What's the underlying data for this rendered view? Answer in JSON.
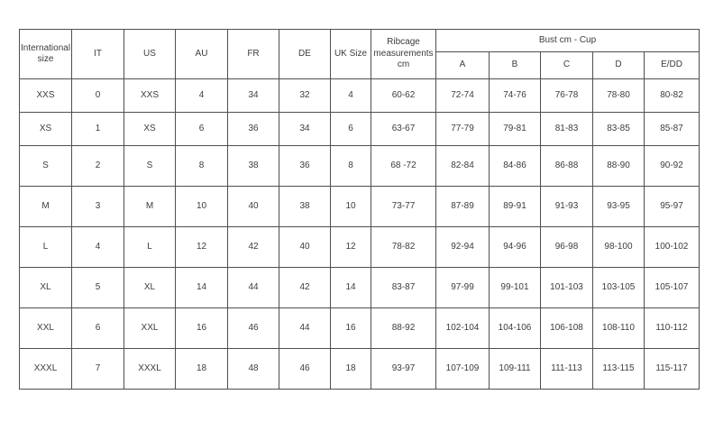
{
  "colors": {
    "background": "#ffffff",
    "border": "#4f4f4f",
    "text": "#3c3c3c"
  },
  "chart_data": {
    "type": "table",
    "title": "",
    "header": {
      "main_columns": [
        "International size",
        "IT",
        "US",
        "AU",
        "FR",
        "DE",
        "UK Size",
        "Ribcage measurements cm"
      ],
      "group": {
        "label": "Bust cm - Cup",
        "sub_columns": [
          "A",
          "B",
          "C",
          "D",
          "E/DD"
        ]
      }
    },
    "rows": [
      [
        "XXS",
        "0",
        "XXS",
        "4",
        "34",
        "32",
        "4",
        "60-62",
        "72-74",
        "74-76",
        "76-78",
        "78-80",
        "80-82"
      ],
      [
        "XS",
        "1",
        "XS",
        "6",
        "36",
        "34",
        "6",
        "63-67",
        "77-79",
        "79-81",
        "81-83",
        "83-85",
        "85-87"
      ],
      [
        "S",
        "2",
        "S",
        "8",
        "38",
        "36",
        "8",
        "68 -72",
        "82-84",
        "84-86",
        "86-88",
        "88-90",
        "90-92"
      ],
      [
        "M",
        "3",
        "M",
        "10",
        "40",
        "38",
        "10",
        "73-77",
        "87-89",
        "89-91",
        "91-93",
        "93-95",
        "95-97"
      ],
      [
        "L",
        "4",
        "L",
        "12",
        "42",
        "40",
        "12",
        "78-82",
        "92-94",
        "94-96",
        "96-98",
        "98-100",
        "100-102"
      ],
      [
        "XL",
        "5",
        "XL",
        "14",
        "44",
        "42",
        "14",
        "83-87",
        "97-99",
        "99-101",
        "101-103",
        "103-105",
        "105-107"
      ],
      [
        "XXL",
        "6",
        "XXL",
        "16",
        "46",
        "44",
        "16",
        "88-92",
        "102-104",
        "104-106",
        "106-108",
        "108-110",
        "110-112"
      ],
      [
        "XXXL",
        "7",
        "XXXL",
        "18",
        "48",
        "46",
        "18",
        "93-97",
        "107-109",
        "109-111",
        "111-113",
        "113-115",
        "115-117"
      ]
    ]
  }
}
